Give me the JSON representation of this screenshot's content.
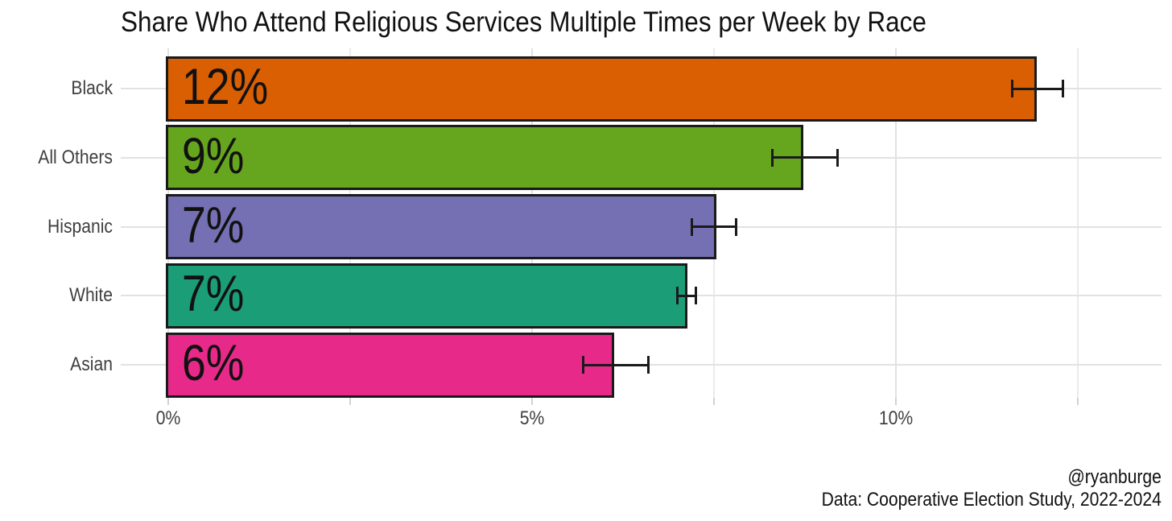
{
  "chart_data": {
    "type": "bar",
    "orientation": "horizontal",
    "title": "Share Who Attend Religious Services Multiple Times per Week by Race",
    "categories": [
      "Black",
      "All Others",
      "Hispanic",
      "White",
      "Asian"
    ],
    "values": [
      11.9,
      8.7,
      7.5,
      7.1,
      6.1
    ],
    "bar_labels": [
      "12%",
      "9%",
      "7%",
      "7%",
      "6%"
    ],
    "error_low": [
      11.6,
      8.3,
      7.2,
      7.0,
      5.7
    ],
    "error_high": [
      12.3,
      9.2,
      7.8,
      7.25,
      6.6
    ],
    "bar_colors": [
      "#D95F02",
      "#66A61E",
      "#7570B3",
      "#1B9E77",
      "#E7298A"
    ],
    "bar_border_color": "#1a1a1a",
    "xlabel": "",
    "ylabel": "",
    "x_axis": {
      "tick_labels": [
        "0%",
        "5%",
        "10%"
      ],
      "tick_values": [
        0,
        5,
        10
      ],
      "minor_tick_values": [
        2.5,
        7.5,
        12.5
      ],
      "range_shown": [
        -0.65,
        13.65
      ]
    },
    "grid": {
      "on": true,
      "major_color": "#e2e2e2",
      "minor_color": "#ebebeb"
    },
    "legend": "none",
    "caption": {
      "line1": "@ryanburge",
      "line2": "Data: Cooperative Election Study, 2022-2024"
    }
  }
}
